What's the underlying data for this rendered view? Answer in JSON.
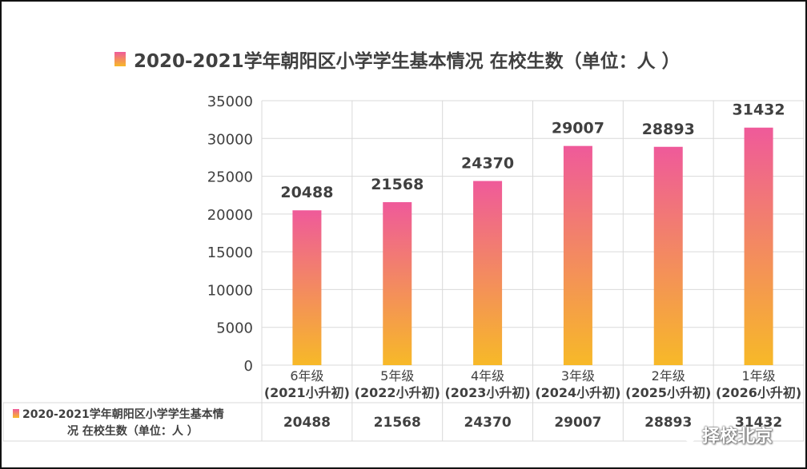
{
  "chart_data": {
    "type": "bar",
    "title": "2020-2021学年朝阳区小学学生基本情况 在校生数（单位：人 ）",
    "series_legend": "2020-2021学年朝阳区小学学生基本情况 在校生数（单位：人 ）",
    "categories": [
      {
        "line1": "6年级",
        "line2": "(2021小升初)"
      },
      {
        "line1": "5年级",
        "line2": "(2022小升初)"
      },
      {
        "line1": "4年级",
        "line2": "(2023小升初)"
      },
      {
        "line1": "3年级",
        "line2": "(2024小升初)"
      },
      {
        "line1": "2年级",
        "line2": "(2025小升初)"
      },
      {
        "line1": "1年级",
        "line2": "(2026小升初)"
      }
    ],
    "values": [
      20488,
      21568,
      24370,
      29007,
      28893,
      31432
    ],
    "ylim": [
      0,
      35000
    ],
    "yticks": [
      0,
      5000,
      10000,
      15000,
      20000,
      25000,
      30000,
      35000
    ],
    "grid": true,
    "data_table": true,
    "colors": {
      "bar_top": "#ef5a9a",
      "bar_bottom": "#f7b928",
      "grid": "#d9d9d9",
      "text": "#404040"
    }
  },
  "watermark": {
    "text": "择校北京",
    "icon": "wechat-icon"
  }
}
